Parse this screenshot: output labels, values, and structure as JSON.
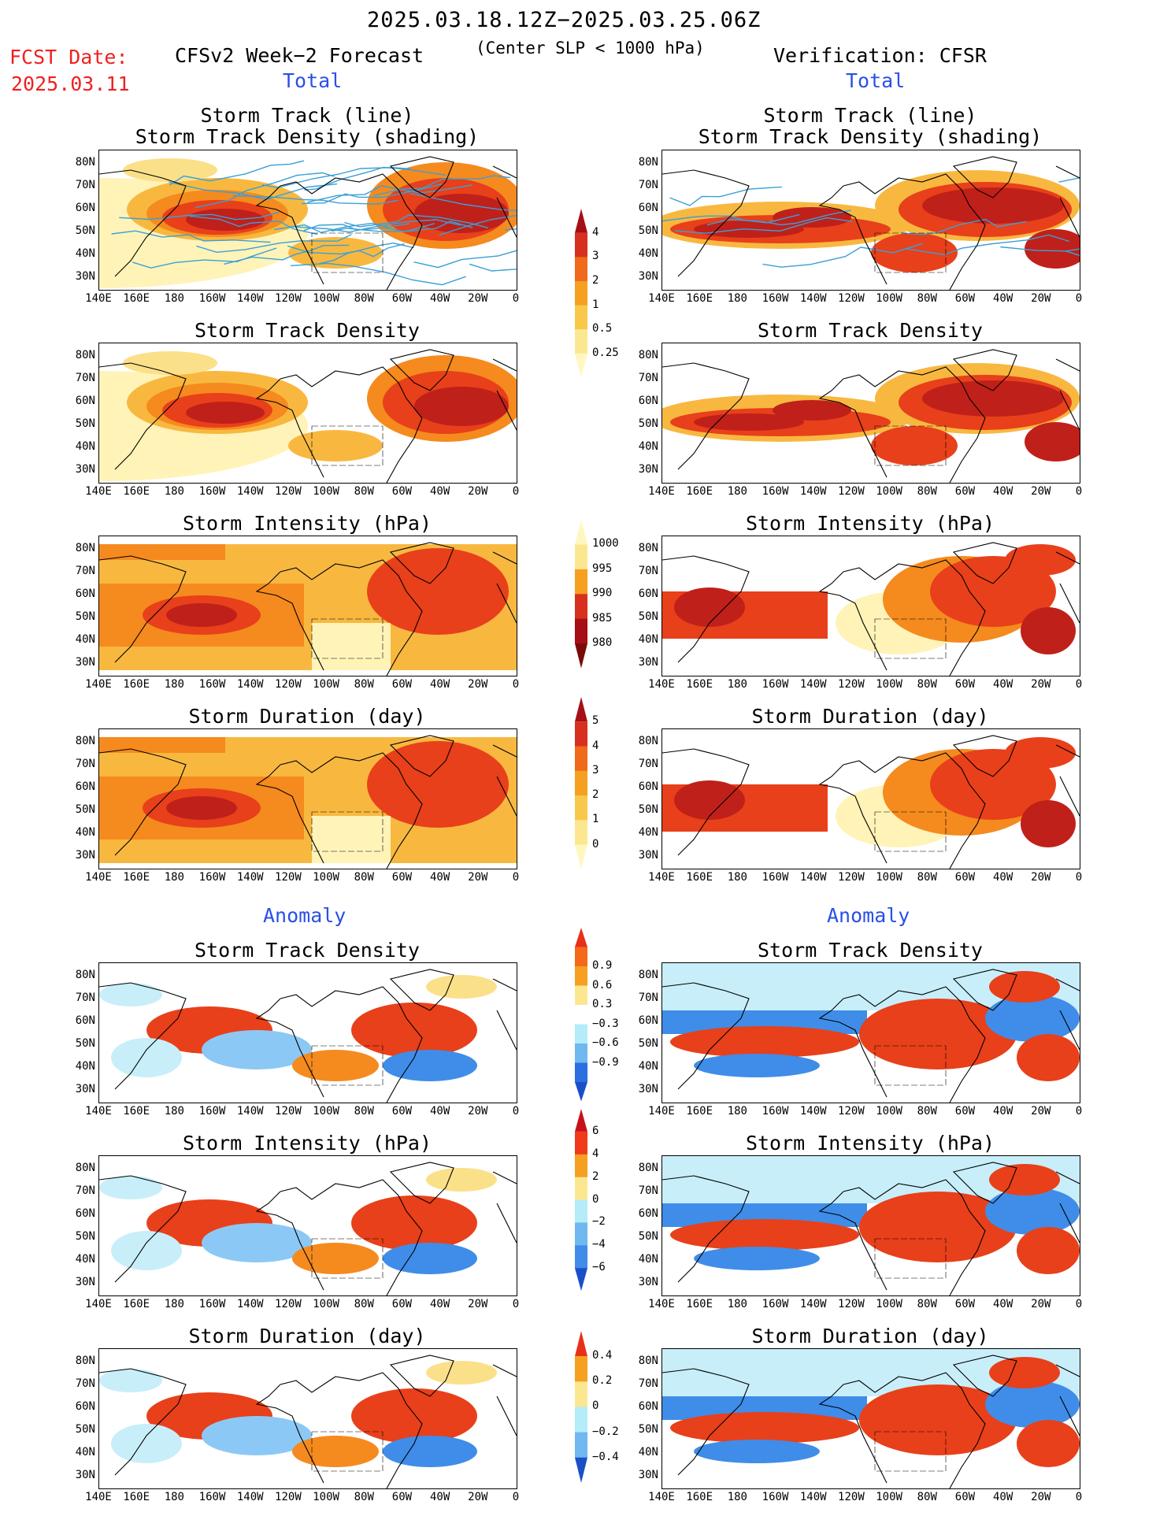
{
  "header": {
    "period": "2025.03.18.12Z−2025.03.25.06Z",
    "fcst_label": "FCST Date:",
    "fcst_date": "2025.03.11",
    "left_title": "CFSv2 Week−2 Forecast",
    "criterion": "(Center SLP < 1000 hPa)",
    "right_title": "Verification: CFSR"
  },
  "sections": {
    "total": "Total",
    "anomaly": "Anomaly"
  },
  "panel_titles": {
    "track_line": "Storm Track (line)",
    "track_density_shading": "Storm Track Density (shading)",
    "track_density": "Storm Track Density",
    "intensity": "Storm Intensity (hPa)",
    "duration": "Storm Duration (day)"
  },
  "axes": {
    "lat_labels": [
      "80N",
      "70N",
      "60N",
      "50N",
      "40N",
      "30N"
    ],
    "lon_labels": [
      "140E",
      "160E",
      "180",
      "160W",
      "140W",
      "120W",
      "100W",
      "80W",
      "60W",
      "40W",
      "20W",
      "0"
    ]
  },
  "colorbars": {
    "track_density_total": {
      "labels": [
        "4",
        "3",
        "2",
        "1",
        "0.5",
        "0.25"
      ],
      "colors": [
        "#a50f15",
        "#d7301f",
        "#ef6a1a",
        "#f5a020",
        "#f8c84a",
        "#fbe790",
        "#fff7c0"
      ]
    },
    "intensity_total": {
      "labels": [
        "1000",
        "995",
        "990",
        "985",
        "980"
      ],
      "colors": [
        "#fff7c0",
        "#fbe790",
        "#f5a020",
        "#d7301f",
        "#a50f15",
        "#7a0a0a"
      ]
    },
    "duration_total": {
      "labels": [
        "5",
        "4",
        "3",
        "2",
        "1",
        "0"
      ],
      "colors": [
        "#a50f15",
        "#d7301f",
        "#ef6a1a",
        "#f5a020",
        "#f8c84a",
        "#fbe790",
        "#fff7c0"
      ]
    },
    "track_density_anom": {
      "labels": [
        "0.9",
        "0.6",
        "0.3",
        "−0.3",
        "−0.6",
        "−0.9"
      ],
      "colors": [
        "#e8301a",
        "#f56a1a",
        "#f5a020",
        "#fbe790",
        "#ffffff",
        "#b4ecfa",
        "#6fb8f0",
        "#2b6fe0",
        "#1a4fc8"
      ]
    },
    "intensity_anom": {
      "labels": [
        "6",
        "4",
        "2",
        "0",
        "−2",
        "−4",
        "−6"
      ],
      "colors": [
        "#c8101a",
        "#f03a1a",
        "#f5a020",
        "#fbe790",
        "#b4ecfa",
        "#6fb8f0",
        "#3f8de8",
        "#1a4fc8"
      ]
    },
    "duration_anom": {
      "labels": [
        "0.4",
        "0.2",
        "0",
        "−0.2",
        "−0.4"
      ],
      "colors": [
        "#e8301a",
        "#f5a020",
        "#fbe790",
        "#b4ecfa",
        "#6fb8f0",
        "#1a4fc8"
      ]
    }
  },
  "panel_colors": {
    "deep": "#a50f15",
    "dark": "#c0201a",
    "red": "#e8401a",
    "orange": "#f58a1e",
    "lightorange": "#f8b840",
    "yellow": "#fbe08a",
    "paleyellow": "#fff3b8",
    "darkblue": "#1a4fc8",
    "blue": "#3f8de8",
    "lightblue": "#8cc8f5",
    "paleblue": "#c8eefa",
    "track_line": "#3aa0d8",
    "coast": "#000000"
  }
}
